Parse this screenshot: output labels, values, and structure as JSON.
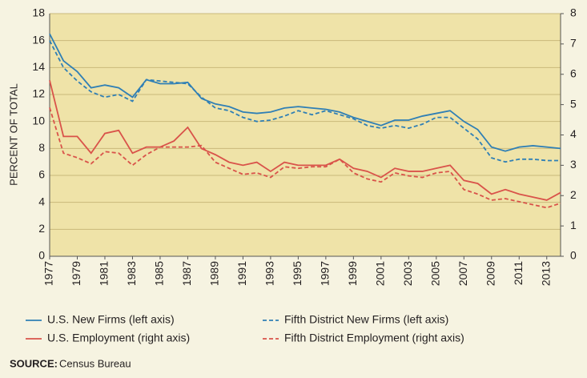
{
  "chart_data": {
    "type": "line",
    "y_label": "PERCENT OF TOTAL",
    "x": [
      1977,
      1978,
      1979,
      1980,
      1981,
      1982,
      1983,
      1984,
      1985,
      1986,
      1987,
      1988,
      1989,
      1990,
      1991,
      1992,
      1993,
      1994,
      1995,
      1996,
      1997,
      1998,
      1999,
      2000,
      2001,
      2002,
      2003,
      2004,
      2005,
      2006,
      2007,
      2008,
      2009,
      2010,
      2011,
      2012,
      2013,
      2014
    ],
    "xlim": [
      1977,
      2014
    ],
    "xticks": [
      1977,
      1979,
      1981,
      1983,
      1985,
      1987,
      1989,
      1991,
      1993,
      1995,
      1997,
      1999,
      2001,
      2003,
      2005,
      2007,
      2009,
      2011,
      2013
    ],
    "ylim": [
      0,
      18
    ],
    "yticks": [
      0,
      2,
      4,
      6,
      8,
      10,
      12,
      14,
      16,
      18
    ],
    "y2lim": [
      0,
      8
    ],
    "y2ticks": [
      0,
      1,
      2,
      3,
      4,
      5,
      6,
      7,
      8
    ],
    "grid": true,
    "series": [
      {
        "name": "U.S. New Firms (left axis)",
        "color": "#2f7fb5",
        "style": "solid",
        "values": [
          16.5,
          14.5,
          13.7,
          12.5,
          12.7,
          12.5,
          11.8,
          13.1,
          12.8,
          12.8,
          12.9,
          11.7,
          11.3,
          11.1,
          10.7,
          10.6,
          10.7,
          11.0,
          11.1,
          11.0,
          10.9,
          10.7,
          10.3,
          10.0,
          9.7,
          10.1,
          10.1,
          10.4,
          10.6,
          10.8,
          10.0,
          9.4,
          8.1,
          7.8,
          8.1,
          8.2,
          8.1,
          8.0
        ]
      },
      {
        "name": "Fifth District New Firms (left axis)",
        "color": "#2f7fb5",
        "style": "dashed",
        "values": [
          16.0,
          14.0,
          13.0,
          12.2,
          11.8,
          12.0,
          11.5,
          13.1,
          13.0,
          12.9,
          12.8,
          11.8,
          11.0,
          10.8,
          10.3,
          10.0,
          10.1,
          10.4,
          10.8,
          10.5,
          10.8,
          10.5,
          10.2,
          9.7,
          9.5,
          9.7,
          9.5,
          9.8,
          10.3,
          10.3,
          9.5,
          8.7,
          7.3,
          7.0,
          7.2,
          7.2,
          7.1,
          7.1
        ]
      },
      {
        "name": "U.S. Employment (right axis)",
        "color": "#d9534a",
        "style": "solid",
        "axis": "y2",
        "values": [
          5.8,
          3.95,
          3.95,
          3.4,
          4.05,
          4.15,
          3.4,
          3.6,
          3.6,
          3.8,
          4.25,
          3.55,
          3.35,
          3.1,
          3.0,
          3.1,
          2.8,
          3.1,
          3.0,
          3.0,
          3.0,
          3.2,
          2.9,
          2.8,
          2.6,
          2.9,
          2.8,
          2.8,
          2.9,
          3.0,
          2.5,
          2.4,
          2.05,
          2.2,
          2.05,
          1.95,
          1.85,
          2.1
        ]
      },
      {
        "name": "Fifth District Employment (right axis)",
        "color": "#d9534a",
        "style": "dashed",
        "axis": "y2",
        "values": [
          4.9,
          3.4,
          3.25,
          3.05,
          3.45,
          3.4,
          3.0,
          3.35,
          3.6,
          3.6,
          3.6,
          3.65,
          3.1,
          2.9,
          2.7,
          2.75,
          2.6,
          2.95,
          2.9,
          2.95,
          2.95,
          3.2,
          2.75,
          2.55,
          2.45,
          2.75,
          2.65,
          2.6,
          2.75,
          2.8,
          2.2,
          2.05,
          1.85,
          1.9,
          1.8,
          1.7,
          1.6,
          1.75
        ]
      }
    ],
    "source_label": "SOURCE:",
    "source": "Census Bureau"
  }
}
